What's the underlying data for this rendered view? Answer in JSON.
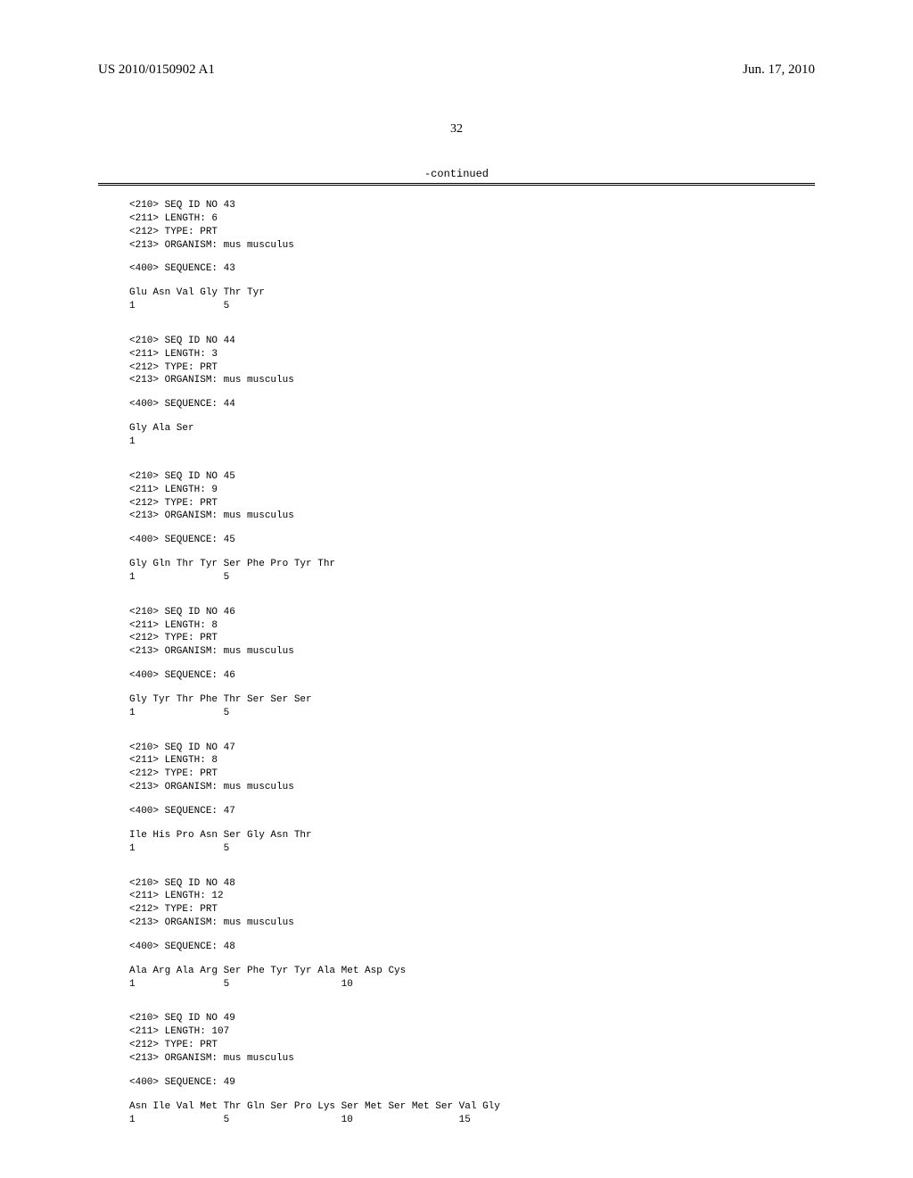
{
  "header": {
    "patent_number": "US 2010/0150902 A1",
    "date": "Jun. 17, 2010"
  },
  "page_number": "32",
  "continued_label": "-continued",
  "sequences": [
    {
      "seq_id": "<210> SEQ ID NO 43",
      "length": "<211> LENGTH: 6",
      "type": "<212> TYPE: PRT",
      "organism": "<213> ORGANISM: mus musculus",
      "seq_400": "<400> SEQUENCE: 43",
      "residues": "Glu Asn Val Gly Thr Tyr",
      "positions": "1               5"
    },
    {
      "seq_id": "<210> SEQ ID NO 44",
      "length": "<211> LENGTH: 3",
      "type": "<212> TYPE: PRT",
      "organism": "<213> ORGANISM: mus musculus",
      "seq_400": "<400> SEQUENCE: 44",
      "residues": "Gly Ala Ser",
      "positions": "1"
    },
    {
      "seq_id": "<210> SEQ ID NO 45",
      "length": "<211> LENGTH: 9",
      "type": "<212> TYPE: PRT",
      "organism": "<213> ORGANISM: mus musculus",
      "seq_400": "<400> SEQUENCE: 45",
      "residues": "Gly Gln Thr Tyr Ser Phe Pro Tyr Thr",
      "positions": "1               5"
    },
    {
      "seq_id": "<210> SEQ ID NO 46",
      "length": "<211> LENGTH: 8",
      "type": "<212> TYPE: PRT",
      "organism": "<213> ORGANISM: mus musculus",
      "seq_400": "<400> SEQUENCE: 46",
      "residues": "Gly Tyr Thr Phe Thr Ser Ser Ser",
      "positions": "1               5"
    },
    {
      "seq_id": "<210> SEQ ID NO 47",
      "length": "<211> LENGTH: 8",
      "type": "<212> TYPE: PRT",
      "organism": "<213> ORGANISM: mus musculus",
      "seq_400": "<400> SEQUENCE: 47",
      "residues": "Ile His Pro Asn Ser Gly Asn Thr",
      "positions": "1               5"
    },
    {
      "seq_id": "<210> SEQ ID NO 48",
      "length": "<211> LENGTH: 12",
      "type": "<212> TYPE: PRT",
      "organism": "<213> ORGANISM: mus musculus",
      "seq_400": "<400> SEQUENCE: 48",
      "residues": "Ala Arg Ala Arg Ser Phe Tyr Tyr Ala Met Asp Cys",
      "positions": "1               5                   10"
    },
    {
      "seq_id": "<210> SEQ ID NO 49",
      "length": "<211> LENGTH: 107",
      "type": "<212> TYPE: PRT",
      "organism": "<213> ORGANISM: mus musculus",
      "seq_400": "<400> SEQUENCE: 49",
      "residues": "Asn Ile Val Met Thr Gln Ser Pro Lys Ser Met Ser Met Ser Val Gly",
      "positions": "1               5                   10                  15"
    }
  ]
}
